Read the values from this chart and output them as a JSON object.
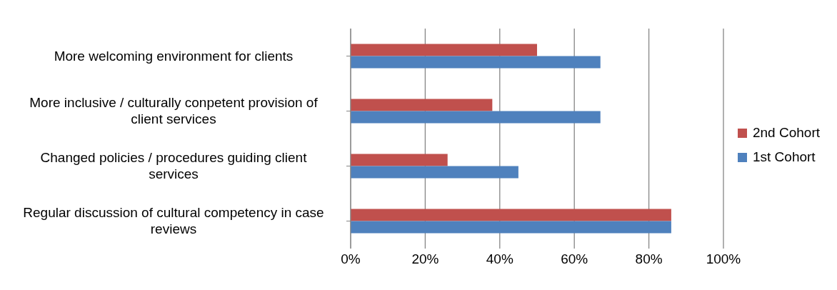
{
  "chart_data": {
    "type": "bar",
    "orientation": "horizontal",
    "categories": [
      "More welcoming environment for clients",
      "More inclusive / culturally conpetent provision of client services",
      "Changed policies / procedures guiding client services",
      "Regular discussion of cultural competency in case reviews"
    ],
    "series": [
      {
        "name": "2nd Cohort",
        "color": "#c0504d",
        "values": [
          50,
          38,
          26,
          86
        ]
      },
      {
        "name": "1st Cohort",
        "color": "#4f81bd",
        "values": [
          67,
          67,
          45,
          86
        ]
      }
    ],
    "xlim": [
      0,
      100
    ],
    "xticks": [
      {
        "value": 0,
        "label": "0%"
      },
      {
        "value": 20,
        "label": "20%"
      },
      {
        "value": 40,
        "label": "40%"
      },
      {
        "value": 60,
        "label": "60%"
      },
      {
        "value": 80,
        "label": "80%"
      },
      {
        "value": 100,
        "label": "100%"
      }
    ],
    "grid": "x",
    "legend": "right"
  }
}
